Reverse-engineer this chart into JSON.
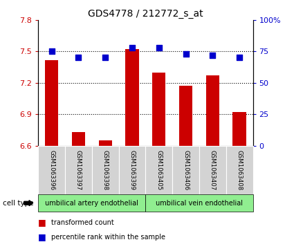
{
  "title": "GDS4778 / 212772_s_at",
  "samples": [
    "GSM1063396",
    "GSM1063397",
    "GSM1063398",
    "GSM1063399",
    "GSM1063405",
    "GSM1063406",
    "GSM1063407",
    "GSM1063408"
  ],
  "red_values": [
    7.42,
    6.73,
    6.65,
    7.52,
    7.3,
    7.17,
    7.27,
    6.92
  ],
  "blue_values": [
    75,
    70,
    70,
    78,
    78,
    73,
    72,
    70
  ],
  "ylim_left": [
    6.6,
    7.8
  ],
  "ylim_right": [
    0,
    100
  ],
  "yticks_left": [
    6.6,
    6.9,
    7.2,
    7.5,
    7.8
  ],
  "yticks_right": [
    0,
    25,
    50,
    75,
    100
  ],
  "ytick_labels_left": [
    "6.6",
    "6.9",
    "7.2",
    "7.5",
    "7.8"
  ],
  "ytick_labels_right": [
    "0",
    "25",
    "50",
    "75",
    "100%"
  ],
  "hlines": [
    6.9,
    7.2,
    7.5
  ],
  "group1": {
    "label": "umbilical artery endothelial",
    "color": "#90ee90"
  },
  "group2": {
    "label": "umbilical vein endothelial",
    "color": "#90ee90"
  },
  "cell_type_label": "cell type",
  "legend1_label": "transformed count",
  "legend2_label": "percentile rank within the sample",
  "red_color": "#cc0000",
  "blue_color": "#0000cc",
  "bar_bg_color": "#d3d3d3",
  "bar_width": 0.5
}
